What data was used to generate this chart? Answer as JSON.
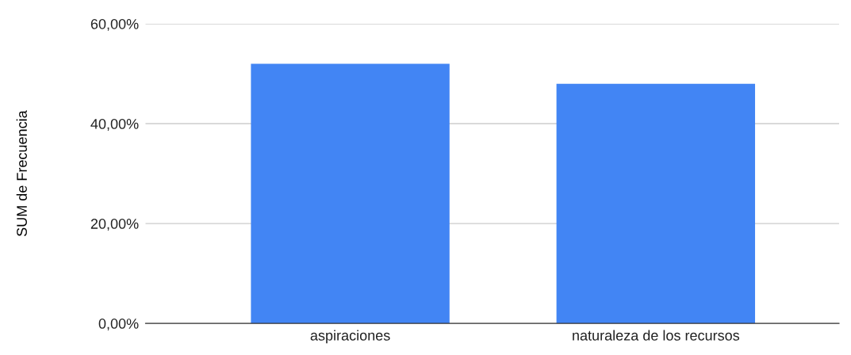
{
  "chart_data": {
    "type": "bar",
    "ylabel": "SUM de Frecuencia",
    "categories": [
      "aspiraciones",
      "naturaleza de los recursos"
    ],
    "values": [
      52,
      48
    ],
    "color": "#4285f4",
    "ylim": [
      0,
      60
    ],
    "yticks": [
      {
        "value": 0,
        "label": "0,00%"
      },
      {
        "value": 20,
        "label": "20,00%"
      },
      {
        "value": 40,
        "label": "40,00%"
      },
      {
        "value": 60,
        "label": "60,00%"
      }
    ],
    "grid": "y",
    "legend": false
  }
}
